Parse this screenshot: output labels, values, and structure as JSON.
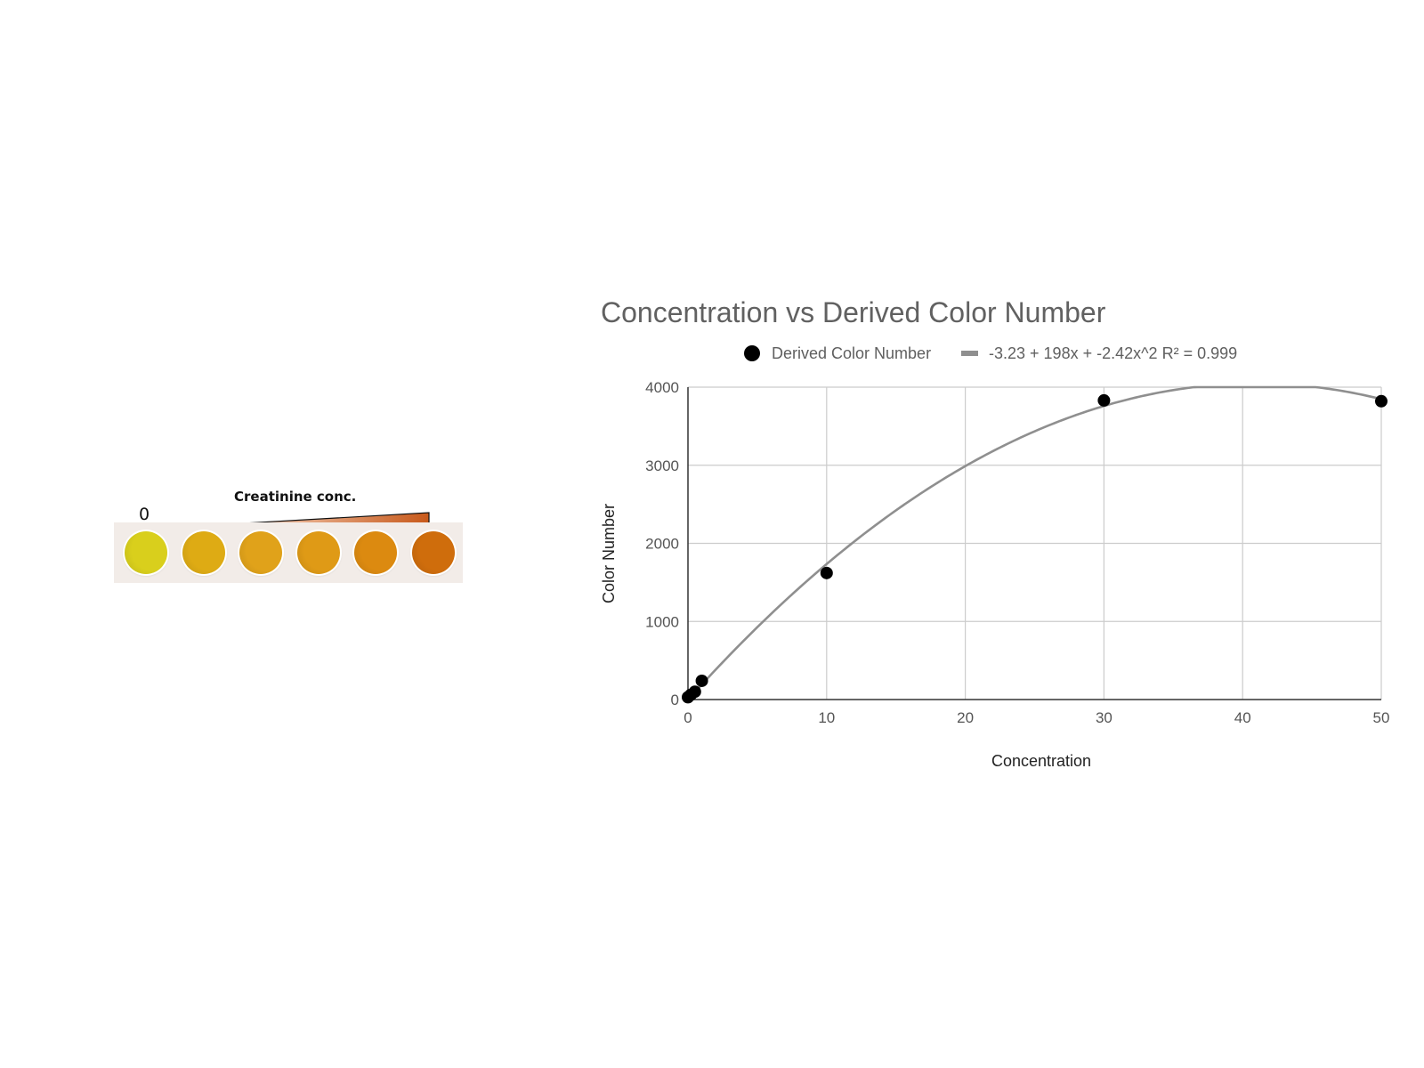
{
  "strip": {
    "zero_label": "0",
    "concentration_label": "Creatinine conc.",
    "wedge_color_light": "#fbe6d8",
    "wedge_color_dark": "#c8591a",
    "wells": [
      {
        "color": "#d9cf1c"
      },
      {
        "color": "#deab14"
      },
      {
        "color": "#e0a21a"
      },
      {
        "color": "#df9a16"
      },
      {
        "color": "#dc8a10"
      },
      {
        "color": "#cf6d0c"
      }
    ]
  },
  "chart_data": {
    "type": "scatter",
    "title": "Concentration vs Derived Color Number",
    "xlabel": "Concentration",
    "ylabel": "Color Number",
    "xlim": [
      0,
      50
    ],
    "ylim": [
      0,
      4000
    ],
    "x_ticks": [
      "0",
      "10",
      "20",
      "30",
      "40",
      "50"
    ],
    "y_ticks": [
      "0",
      "1000",
      "2000",
      "3000",
      "4000"
    ],
    "grid": true,
    "legend_position": "top",
    "series": [
      {
        "name": "Derived Color Number",
        "color": "#000000",
        "points": [
          [
            0,
            30
          ],
          [
            0.2,
            60
          ],
          [
            0.5,
            100
          ],
          [
            1,
            240
          ],
          [
            10,
            1620
          ],
          [
            30,
            3830
          ],
          [
            50,
            3820
          ]
        ]
      }
    ],
    "trendline": {
      "name": "-3.23 + 198x + -2.42x^2 R² = 0.999",
      "color": "#8f8f8f",
      "coefficients": [
        -3.23,
        198,
        -2.42
      ]
    }
  }
}
